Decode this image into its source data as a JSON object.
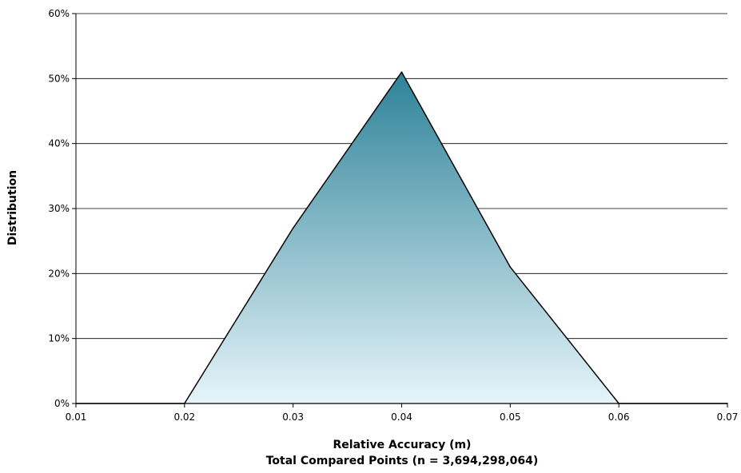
{
  "chart_data": {
    "type": "area",
    "xlabel": "Relative Accuracy (m)",
    "xlabel_line2": "Total Compared Points (n = 3,694,298,064)",
    "ylabel": "Distribution",
    "xlim": [
      0.01,
      0.07
    ],
    "ylim": [
      0,
      60
    ],
    "x_ticks": [
      "0.01",
      "0.02",
      "0.03",
      "0.04",
      "0.05",
      "0.06",
      "0.07"
    ],
    "x_tick_values": [
      0.01,
      0.02,
      0.03,
      0.04,
      0.05,
      0.06,
      0.07
    ],
    "y_ticks": [
      "0%",
      "10%",
      "20%",
      "30%",
      "40%",
      "50%",
      "60%"
    ],
    "y_tick_values": [
      0,
      10,
      20,
      30,
      40,
      50,
      60
    ],
    "grid": "horizontal",
    "series": [
      {
        "x": [
          0.01,
          0.02,
          0.03,
          0.04,
          0.05,
          0.06,
          0.07
        ],
        "values": [
          0,
          0,
          27,
          51,
          21,
          0,
          0
        ]
      }
    ],
    "colors": {
      "fill_top": "#2e8299",
      "fill_bottom": "#e6f5fa",
      "line": "#000000"
    }
  }
}
